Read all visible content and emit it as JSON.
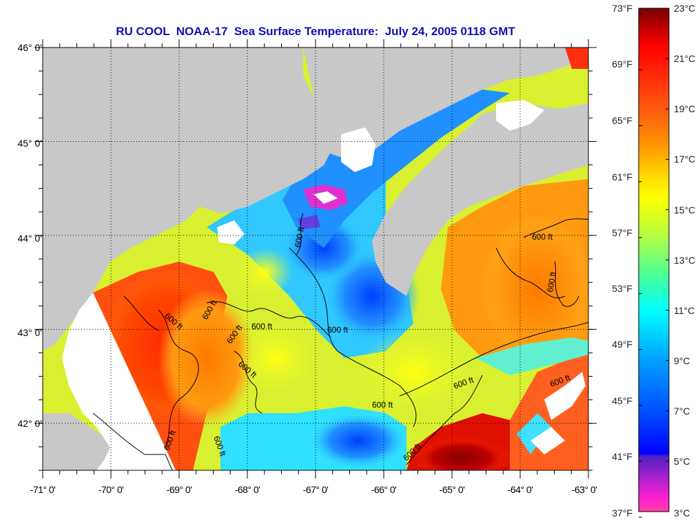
{
  "title": "RU COOL  NOAA-17  Sea Surface Temperature:  July 24, 2005 0118 GMT",
  "map": {
    "lat_labels": [
      "46° 0'",
      "45° 0'",
      "44° 0'",
      "43° 0'",
      "42° 0'"
    ],
    "lat_values": [
      46,
      45,
      44,
      43,
      42
    ],
    "lon_labels": [
      "-71° 0'",
      "-70° 0'",
      "-69° 0'",
      "-68° 0'",
      "-67° 0'",
      "-66° 0'",
      "-65° 0'",
      "-64° 0'",
      "-63° 0'"
    ],
    "lon_values": [
      -71,
      -70,
      -69,
      -68,
      -67,
      -66,
      -65,
      -64,
      -63
    ],
    "lat_range": [
      41.5,
      46.0
    ],
    "lon_range": [
      -71.0,
      -63.0
    ],
    "contour_label": "600 ft",
    "land_color": "#c8c8c8",
    "nodata_color": "#ffffff",
    "title_color": "#1010b0"
  },
  "colorbar": {
    "fahrenheit_labels": [
      "73°F",
      "69°F",
      "65°F",
      "61°F",
      "57°F",
      "53°F",
      "49°F",
      "45°F",
      "41°F",
      "37°F"
    ],
    "fahrenheit_values": [
      73,
      69,
      65,
      61,
      57,
      53,
      49,
      45,
      41,
      37
    ],
    "celsius_labels": [
      "23°C",
      "21°C",
      "19°C",
      "17°C",
      "15°C",
      "13°C",
      "11°C",
      "9°C",
      "7°C",
      "5°C",
      "3°C"
    ],
    "celsius_values": [
      23,
      21,
      19,
      17,
      15,
      13,
      11,
      9,
      7,
      5,
      3
    ],
    "range_c": [
      3,
      23
    ],
    "stops": [
      {
        "c": 23,
        "color": "#7a0000"
      },
      {
        "c": 21.5,
        "color": "#ff0000"
      },
      {
        "c": 19,
        "color": "#ff5a10"
      },
      {
        "c": 17.5,
        "color": "#ff9800"
      },
      {
        "c": 16.5,
        "color": "#ffd000"
      },
      {
        "c": 15.5,
        "color": "#ffff00"
      },
      {
        "c": 14,
        "color": "#b8ff40"
      },
      {
        "c": 12.5,
        "color": "#50ff90"
      },
      {
        "c": 11,
        "color": "#00ffff"
      },
      {
        "c": 9,
        "color": "#00a0ff"
      },
      {
        "c": 7,
        "color": "#0050ff"
      },
      {
        "c": 5.3,
        "color": "#0000ff"
      },
      {
        "c": 5.2,
        "color": "#5020c0"
      },
      {
        "c": 4.3,
        "color": "#b020d0"
      },
      {
        "c": 3.5,
        "color": "#ff20d0"
      },
      {
        "c": 3,
        "color": "#ff40a0"
      }
    ]
  }
}
